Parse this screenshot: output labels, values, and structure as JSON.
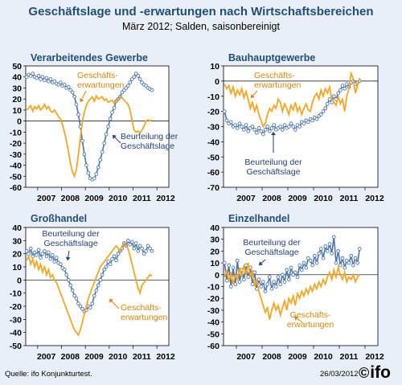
{
  "header": {
    "title": "Geschäftslage und -erwartungen nach Wirtschaftsbereichen",
    "subtitle": "März 2012; Salden, saisonbereinigt"
  },
  "footer": {
    "source": "Quelle: ifo Konjunkturtest.",
    "date": "26/03/2012",
    "logo_mark": "©",
    "logo_text": "ifo"
  },
  "colors": {
    "lage": "#4a74ae",
    "erwartungen": "#f5a623",
    "panel_title": "#1f4e79",
    "background": "#e9eff8"
  },
  "chart_data": [
    {
      "type": "line",
      "title": "Verarbeitendes Gewerbe",
      "ylim": [
        -60,
        50
      ],
      "yticks": [
        -60,
        -50,
        -40,
        -30,
        -20,
        -10,
        0,
        10,
        20,
        30,
        40,
        50
      ],
      "xticks": [
        "2007",
        "2008",
        "2009",
        "2010",
        "2011",
        "2012"
      ],
      "x_range": [
        2006.5,
        2012.5
      ],
      "grid": false,
      "annotations": [
        {
          "series": "Geschäftserwartungen",
          "lines": [
            "Geschäfts-",
            "erwartungen"
          ]
        },
        {
          "series": "Beurteilung der Geschäftslage",
          "lines": [
            "Beurteilung der",
            "Geschäftslage"
          ]
        }
      ],
      "series": [
        {
          "name": "Beurteilung der Geschäftslage",
          "key": "lage",
          "x_start": 2006.5,
          "values": [
            40,
            42,
            41,
            43,
            40,
            39,
            41,
            38,
            40,
            37,
            39,
            36,
            38,
            35,
            36,
            34,
            33,
            35,
            32,
            33,
            30,
            31,
            28,
            26,
            22,
            15,
            6,
            -5,
            -18,
            -30,
            -40,
            -47,
            -52,
            -53,
            -52,
            -48,
            -42,
            -35,
            -28,
            -20,
            -12,
            -5,
            2,
            8,
            12,
            18,
            20,
            22,
            26,
            28,
            30,
            32,
            35,
            38,
            40,
            43,
            41,
            38,
            35,
            33,
            32,
            30,
            29,
            28
          ]
        },
        {
          "name": "Geschäftserwartungen",
          "key": "erwartungen",
          "x_start": 2006.5,
          "values": [
            10,
            12,
            14,
            9,
            13,
            11,
            14,
            10,
            12,
            15,
            11,
            13,
            9,
            8,
            10,
            7,
            4,
            2,
            -3,
            -10,
            -18,
            -28,
            -38,
            -46,
            -50,
            -44,
            -30,
            -15,
            0,
            8,
            14,
            18,
            20,
            22,
            18,
            23,
            20,
            21,
            22,
            19,
            20,
            17,
            18,
            19,
            16,
            18,
            20,
            22,
            21,
            19,
            17,
            15,
            10,
            0,
            -8,
            -10,
            -9,
            -11,
            -8,
            -5,
            0,
            1,
            0,
            1
          ]
        }
      ]
    },
    {
      "type": "line",
      "title": "Bauhauptgewerbe",
      "ylim": [
        -70,
        10
      ],
      "yticks": [
        -70,
        -60,
        -50,
        -40,
        -30,
        -20,
        -10,
        0,
        10
      ],
      "xticks": [
        "2007",
        "2008",
        "2009",
        "2010",
        "2011",
        "2012"
      ],
      "x_range": [
        2006.5,
        2012.5
      ],
      "grid": false,
      "annotations": [
        {
          "series": "Geschäftserwartungen",
          "lines": [
            "Geschäfts-",
            "erwartungen"
          ]
        },
        {
          "series": "Beurteilung der Geschäftslage",
          "lines": [
            "Beurteilung der",
            "Geschäftslage"
          ]
        }
      ],
      "series": [
        {
          "name": "Beurteilung der Geschäftslage",
          "key": "lage",
          "x_start": 2006.5,
          "values": [
            -20,
            -26,
            -28,
            -27,
            -30,
            -29,
            -31,
            -28,
            -30,
            -32,
            -29,
            -33,
            -31,
            -30,
            -32,
            -34,
            -31,
            -33,
            -35,
            -32,
            -30,
            -33,
            -31,
            -29,
            -32,
            -31,
            -30,
            -32,
            -29,
            -31,
            -30,
            -28,
            -30,
            -32,
            -29,
            -30,
            -27,
            -28,
            -26,
            -27,
            -25,
            -26,
            -24,
            -25,
            -23,
            -22,
            -20,
            -18,
            -15,
            -12,
            -14,
            -10,
            -12,
            -8,
            -6,
            -3,
            -5,
            -2,
            -4,
            -1,
            0,
            -2,
            -1,
            0
          ]
        },
        {
          "name": "Geschäftserwartungen",
          "key": "erwartungen",
          "x_start": 2006.5,
          "values": [
            -2,
            -5,
            -3,
            -8,
            -4,
            -10,
            -6,
            -9,
            -5,
            -11,
            -7,
            -12,
            -18,
            -14,
            -20,
            -16,
            -22,
            -26,
            -30,
            -28,
            -22,
            -18,
            -20,
            -16,
            -18,
            -12,
            -14,
            -20,
            -15,
            -18,
            -22,
            -16,
            -19,
            -14,
            -20,
            -17,
            -22,
            -18,
            -15,
            -19,
            -20,
            -14,
            -10,
            -8,
            -12,
            -6,
            -10,
            -5,
            -8,
            -4,
            -12,
            -14,
            -16,
            -10,
            -15,
            -12,
            -20,
            -10,
            -5,
            5,
            2,
            -8,
            -3,
            2
          ]
        }
      ]
    },
    {
      "type": "line",
      "title": "Großhandel",
      "ylim": [
        -50,
        40
      ],
      "yticks": [
        -50,
        -40,
        -30,
        -20,
        -10,
        0,
        10,
        20,
        30,
        40
      ],
      "xticks": [
        "2007",
        "2008",
        "2009",
        "2010",
        "2011",
        "2012"
      ],
      "x_range": [
        2006.5,
        2012.5
      ],
      "grid": false,
      "annotations": [
        {
          "series": "Beurteilung der Geschäftslage",
          "lines": [
            "Beurteilung der",
            "Geschäftslage"
          ]
        },
        {
          "series": "Geschäftserwartungen",
          "lines": [
            "Geschäfts-",
            "erwartungen"
          ]
        }
      ],
      "series": [
        {
          "name": "Beurteilung der Geschäftslage",
          "key": "lage",
          "x_start": 2006.5,
          "values": [
            22,
            20,
            24,
            18,
            21,
            19,
            23,
            17,
            20,
            22,
            18,
            21,
            16,
            19,
            14,
            17,
            13,
            12,
            9,
            8,
            4,
            0,
            -4,
            -8,
            -12,
            -14,
            -18,
            -20,
            -22,
            -24,
            -23,
            -20,
            -21,
            -18,
            -12,
            -8,
            -4,
            0,
            4,
            8,
            10,
            14,
            12,
            16,
            18,
            15,
            20,
            22,
            24,
            28,
            26,
            30,
            27,
            29,
            24,
            28,
            22,
            26,
            24,
            20,
            22,
            26,
            24,
            22
          ]
        },
        {
          "name": "Geschäftserwartungen",
          "key": "erwartungen",
          "x_start": 2006.5,
          "values": [
            15,
            18,
            12,
            16,
            10,
            14,
            8,
            12,
            6,
            10,
            4,
            8,
            2,
            4,
            0,
            -2,
            -6,
            -10,
            -14,
            -18,
            -22,
            -26,
            -30,
            -34,
            -38,
            -40,
            -42,
            -38,
            -32,
            -26,
            -20,
            -14,
            -10,
            -6,
            -2,
            2,
            6,
            10,
            12,
            14,
            16,
            18,
            20,
            22,
            24,
            26,
            24,
            22,
            26,
            28,
            26,
            24,
            18,
            12,
            6,
            0,
            -6,
            -10,
            -4,
            -2,
            0,
            2,
            4,
            3
          ]
        }
      ]
    },
    {
      "type": "line",
      "title": "Einzelhandel",
      "ylim": [
        -60,
        40
      ],
      "yticks": [
        -60,
        -50,
        -40,
        -30,
        -20,
        -10,
        0,
        10,
        20,
        30,
        40
      ],
      "xticks": [
        "2007",
        "2008",
        "2009",
        "2010",
        "2011",
        "2012"
      ],
      "x_range": [
        2006.5,
        2012.5
      ],
      "grid": false,
      "annotations": [
        {
          "series": "Beurteilung der Geschäftslage",
          "lines": [
            "Beurteilung der",
            "Geschäftslage"
          ]
        },
        {
          "series": "Geschäftserwartungen",
          "lines": [
            "Geschäfts-",
            "erwartungen"
          ]
        }
      ],
      "series": [
        {
          "name": "Beurteilung der Geschäftslage",
          "key": "lage",
          "x_start": 2006.5,
          "values": [
            10,
            -5,
            8,
            -10,
            6,
            -8,
            12,
            -6,
            4,
            -4,
            8,
            -2,
            6,
            -8,
            2,
            -12,
            -4,
            -10,
            -6,
            -14,
            -8,
            -2,
            -12,
            -6,
            -10,
            -2,
            -8,
            0,
            -6,
            4,
            -4,
            6,
            0,
            2,
            -2,
            8,
            4,
            10,
            6,
            14,
            12,
            8,
            16,
            10,
            18,
            22,
            14,
            24,
            20,
            26,
            18,
            32,
            10,
            20,
            8,
            14,
            6,
            12,
            10,
            16,
            8,
            14,
            10,
            22
          ]
        },
        {
          "name": "Geschäftserwartungen",
          "key": "erwartungen",
          "x_start": 2006.5,
          "values": [
            -2,
            4,
            -6,
            2,
            -8,
            0,
            -4,
            6,
            -2,
            8,
            0,
            10,
            -2,
            4,
            -10,
            -4,
            -14,
            -20,
            -26,
            -32,
            -28,
            -38,
            -30,
            -24,
            -30,
            -26,
            -34,
            -28,
            -22,
            -30,
            -20,
            -24,
            -18,
            -26,
            -16,
            -20,
            -14,
            -18,
            -12,
            -16,
            -10,
            -14,
            -8,
            -12,
            -6,
            -10,
            -4,
            -8,
            -2,
            2,
            -4,
            4,
            -2,
            6,
            0,
            -4,
            2,
            -6,
            -2,
            -4,
            0,
            -6,
            -2,
            0
          ]
        }
      ]
    }
  ]
}
